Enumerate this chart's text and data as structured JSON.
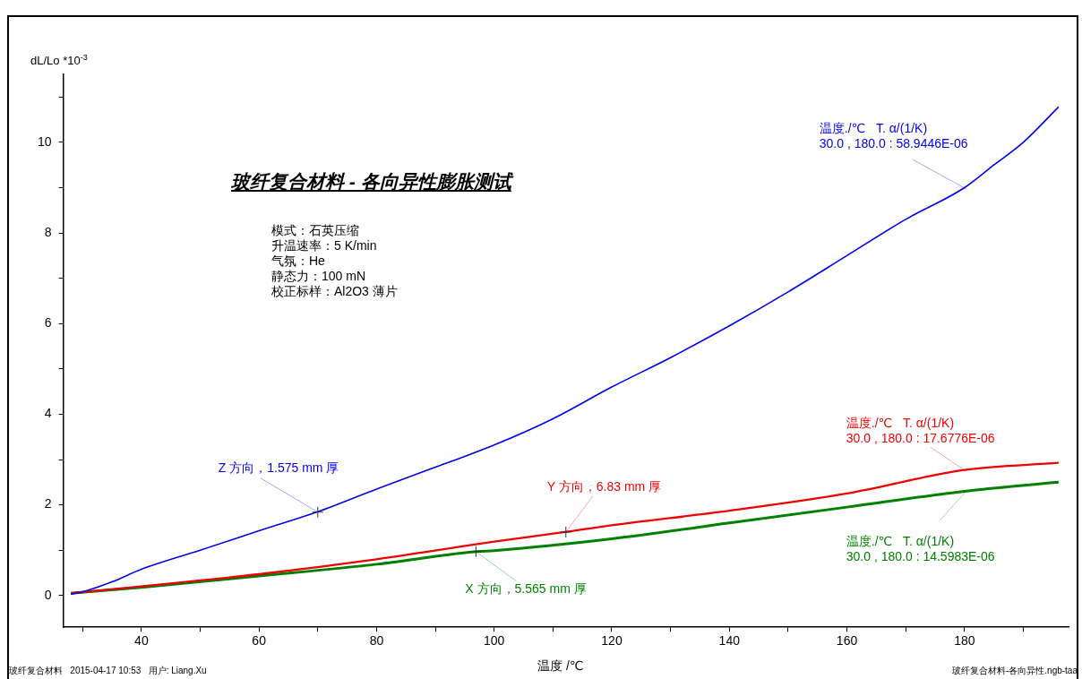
{
  "chart_data": {
    "type": "line",
    "title": "玻纤复合材料 - 各向异性膨胀测试",
    "xlabel": "温度 /℃",
    "ylabel": "dL/Lo *10$^{-3}$",
    "series": [
      {
        "color": "#0000ee",
        "x": [
          28,
          30,
          35,
          40,
          50,
          60,
          70,
          80,
          90,
          100,
          110,
          120,
          130,
          140,
          150,
          160,
          170,
          180,
          185,
          190,
          196
        ],
        "values": [
          0.03,
          0.08,
          0.3,
          0.58,
          1.0,
          1.43,
          1.85,
          2.35,
          2.83,
          3.32,
          3.9,
          4.6,
          5.25,
          5.95,
          6.7,
          7.5,
          8.3,
          9.0,
          9.5,
          10.0,
          10.78
        ]
      },
      {
        "color": "#ee0000",
        "x": [
          28,
          40,
          60,
          80,
          100,
          112,
          120,
          140,
          160,
          180,
          196
        ],
        "values": [
          0.05,
          0.2,
          0.47,
          0.8,
          1.19,
          1.4,
          1.55,
          1.87,
          2.25,
          2.77,
          2.93
        ]
      },
      {
        "color": "#008000",
        "x": [
          28,
          40,
          60,
          80,
          97,
          100,
          120,
          140,
          160,
          180,
          196
        ],
        "values": [
          0.05,
          0.18,
          0.43,
          0.69,
          0.97,
          0.99,
          1.25,
          1.6,
          1.95,
          2.3,
          2.5
        ]
      }
    ],
    "xlim": [
      26.7,
      197.7
    ],
    "ylim": [
      -0.7,
      11.5
    ],
    "xticks": [
      {
        "value": 30,
        "label": null
      },
      40,
      {
        "value": 50,
        "label": null
      },
      60,
      {
        "value": 70,
        "label": null
      },
      80,
      {
        "value": 90,
        "label": null
      },
      100,
      {
        "value": 110,
        "label": null
      },
      120,
      {
        "value": 130,
        "label": null
      },
      140,
      {
        "value": 150,
        "label": null
      },
      160,
      {
        "value": 170,
        "label": null
      },
      180,
      {
        "value": 190,
        "label": null
      }
    ],
    "yticks": [
      0,
      {
        "value": 1,
        "label": null
      },
      2,
      {
        "value": 3,
        "label": null
      },
      4,
      {
        "value": 5,
        "label": null
      },
      6,
      {
        "value": 7,
        "label": null
      },
      8,
      {
        "value": 9,
        "label": null
      },
      10,
      {
        "value": 11,
        "label": null
      }
    ],
    "grid": false,
    "legend": false,
    "marker": "none",
    "line_style": "solid",
    "annotations": [
      "模式：石英压缩",
      "升温速率：5 K/min",
      "气氛：He",
      "静态力：100 mN",
      "校正标样：Al2O3 薄片",
      {
        "text": "Z 方向，1.575 mm 厚",
        "x": 70,
        "y": 1.84
      },
      {
        "text": "Y 方向，6.83 mm 厚",
        "x": 112.2,
        "y": 1.4
      },
      {
        "text": "X 方向，5.565 mm 厚",
        "x": 96.9,
        "y": 0.97
      },
      {
        "text": "温度./℃   T. α/(1/K)\n30.0 , 180.0 : 58.9446E-06",
        "x": 180.3,
        "y": 8.97
      },
      {
        "text": "温度./℃   T. α/(1/K)\n30.0 , 180.0 : 17.6776E-06",
        "x": 180.3,
        "y": 2.74
      },
      {
        "text": "温度./℃   T. α/(1/K)\n30.0 , 180.0 : 14.5983E-06",
        "x": 180.3,
        "y": 2.3
      },
      "玻纤复合材料   2015-04-17 10:53   用户: Liang.Xu",
      "玻纤复合材料-各向异性.ngb-taa"
    ]
  }
}
